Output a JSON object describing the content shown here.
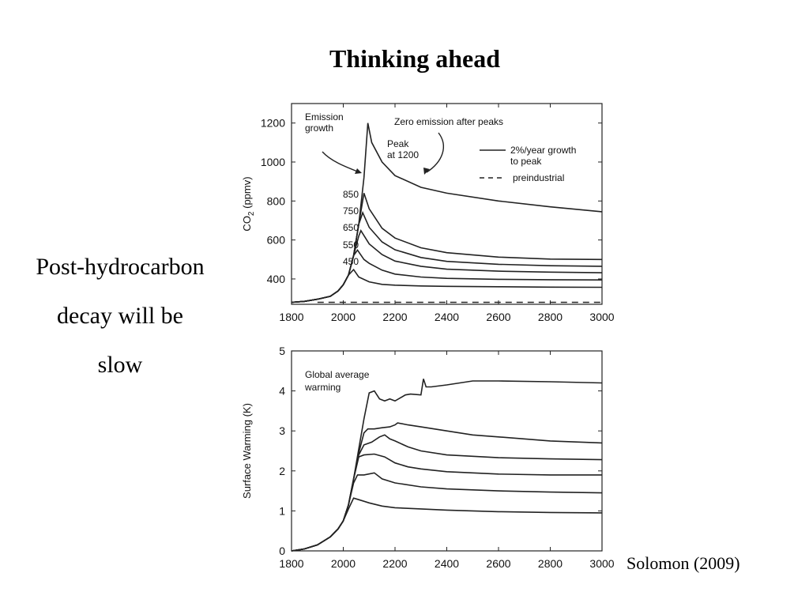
{
  "slide": {
    "title": "Thinking ahead",
    "side_text": [
      "Post-hydrocarbon",
      "decay will be",
      "slow"
    ],
    "citation": "Solomon (2009)"
  },
  "chart_data": [
    {
      "type": "line",
      "title": "",
      "xlabel": "",
      "ylabel": "CO2 (ppmv)",
      "xlim": [
        1800,
        3000
      ],
      "ylim": [
        270,
        1300
      ],
      "xticks": [
        1800,
        2000,
        2200,
        2400,
        2600,
        2800,
        3000
      ],
      "yticks": [
        400,
        600,
        800,
        1000,
        1200
      ],
      "grid": false,
      "legend_position": "top-right",
      "legend": [
        {
          "label": "2%/year growth\nto peak",
          "style": "solid"
        },
        {
          "label": "preindustrial",
          "style": "dashed"
        }
      ],
      "annotations": {
        "emission_growth": "Emission\ngrowth",
        "zero_emission": "Zero emission after peaks",
        "peak": "Peak\nat 1200",
        "peak_labels": [
          "850",
          "750",
          "650",
          "550",
          "450"
        ]
      },
      "series": [
        {
          "peak": 1200,
          "style": "solid",
          "x": [
            1800,
            1850,
            1900,
            1950,
            1980,
            2000,
            2020,
            2040,
            2060,
            2080,
            2095,
            2110,
            2150,
            2200,
            2300,
            2400,
            2600,
            2800,
            3000
          ],
          "y": [
            280,
            285,
            296,
            311,
            338,
            370,
            420,
            520,
            680,
            920,
            1200,
            1100,
            1000,
            930,
            870,
            840,
            800,
            770,
            745
          ]
        },
        {
          "peak": 850,
          "style": "solid",
          "x": [
            1800,
            1850,
            1900,
            1950,
            1980,
            2000,
            2020,
            2040,
            2060,
            2080,
            2100,
            2150,
            2200,
            2300,
            2400,
            2600,
            2800,
            3000
          ],
          "y": [
            280,
            285,
            296,
            311,
            338,
            370,
            420,
            520,
            680,
            840,
            760,
            660,
            610,
            560,
            535,
            512,
            502,
            500
          ]
        },
        {
          "peak": 750,
          "style": "solid",
          "x": [
            1800,
            1850,
            1900,
            1950,
            1980,
            2000,
            2020,
            2040,
            2060,
            2075,
            2100,
            2150,
            2200,
            2300,
            2400,
            2600,
            2800,
            3000
          ],
          "y": [
            280,
            285,
            296,
            311,
            338,
            370,
            420,
            520,
            680,
            740,
            665,
            590,
            550,
            510,
            490,
            475,
            468,
            465
          ]
        },
        {
          "peak": 650,
          "style": "solid",
          "x": [
            1800,
            1850,
            1900,
            1950,
            1980,
            2000,
            2020,
            2040,
            2060,
            2068,
            2100,
            2150,
            2200,
            2300,
            2400,
            2600,
            2800,
            3000
          ],
          "y": [
            280,
            285,
            296,
            311,
            338,
            370,
            420,
            520,
            620,
            648,
            580,
            525,
            492,
            465,
            450,
            440,
            435,
            432
          ]
        },
        {
          "peak": 550,
          "style": "solid",
          "x": [
            1800,
            1850,
            1900,
            1950,
            1980,
            2000,
            2020,
            2040,
            2055,
            2080,
            2100,
            2150,
            2200,
            2300,
            2400,
            2600,
            2800,
            3000
          ],
          "y": [
            280,
            285,
            296,
            311,
            338,
            370,
            420,
            520,
            548,
            500,
            480,
            445,
            425,
            410,
            403,
            398,
            396,
            395
          ]
        },
        {
          "peak": 450,
          "style": "solid",
          "x": [
            1800,
            1850,
            1900,
            1950,
            1980,
            2000,
            2020,
            2040,
            2060,
            2100,
            2150,
            2200,
            2300,
            2400,
            2600,
            2800,
            3000
          ],
          "y": [
            280,
            285,
            296,
            311,
            338,
            370,
            420,
            448,
            410,
            385,
            372,
            368,
            364,
            362,
            360,
            358,
            357
          ]
        },
        {
          "name": "preindustrial",
          "style": "dashed",
          "x": [
            1900,
            3000
          ],
          "y": [
            280,
            280
          ]
        }
      ]
    },
    {
      "type": "line",
      "title": "",
      "xlabel": "",
      "ylabel": "Surface Warming (K)",
      "xlim": [
        1800,
        3000
      ],
      "ylim": [
        0,
        5
      ],
      "xticks": [
        1800,
        2000,
        2200,
        2400,
        2600,
        2800,
        3000
      ],
      "yticks": [
        0,
        1,
        2,
        3,
        4,
        5
      ],
      "grid": false,
      "annotations": {
        "global_average": "Global average\nwarming"
      },
      "series": [
        {
          "peak": 1200,
          "style": "solid",
          "x": [
            1800,
            1850,
            1900,
            1950,
            1980,
            2000,
            2020,
            2040,
            2060,
            2080,
            2100,
            2120,
            2140,
            2160,
            2180,
            2200,
            2240,
            2260,
            2300,
            2310,
            2320,
            2340,
            2400,
            2500,
            2600,
            2800,
            3000
          ],
          "y": [
            0,
            0.05,
            0.15,
            0.35,
            0.55,
            0.75,
            1.15,
            1.8,
            2.55,
            3.3,
            3.95,
            4.0,
            3.8,
            3.75,
            3.8,
            3.75,
            3.9,
            3.92,
            3.9,
            4.3,
            4.1,
            4.1,
            4.15,
            4.25,
            4.25,
            4.23,
            4.2
          ]
        },
        {
          "peak": 850,
          "style": "solid",
          "x": [
            1800,
            1850,
            1900,
            1950,
            1980,
            2000,
            2020,
            2040,
            2060,
            2080,
            2095,
            2120,
            2150,
            2180,
            2200,
            2210,
            2250,
            2300,
            2400,
            2500,
            2600,
            2800,
            3000
          ],
          "y": [
            0,
            0.05,
            0.15,
            0.35,
            0.55,
            0.75,
            1.15,
            1.8,
            2.45,
            2.95,
            3.05,
            3.05,
            3.08,
            3.1,
            3.15,
            3.2,
            3.15,
            3.1,
            3.0,
            2.9,
            2.85,
            2.75,
            2.7
          ]
        },
        {
          "peak": 750,
          "style": "solid",
          "x": [
            1800,
            1850,
            1900,
            1950,
            1980,
            2000,
            2020,
            2040,
            2060,
            2080,
            2110,
            2140,
            2160,
            2180,
            2200,
            2250,
            2300,
            2400,
            2600,
            2800,
            3000
          ],
          "y": [
            0,
            0.05,
            0.15,
            0.35,
            0.55,
            0.75,
            1.15,
            1.8,
            2.4,
            2.65,
            2.72,
            2.85,
            2.9,
            2.8,
            2.75,
            2.6,
            2.5,
            2.4,
            2.33,
            2.3,
            2.28
          ]
        },
        {
          "peak": 650,
          "style": "solid",
          "x": [
            1800,
            1850,
            1900,
            1950,
            1980,
            2000,
            2020,
            2040,
            2060,
            2080,
            2120,
            2160,
            2200,
            2250,
            2300,
            2400,
            2600,
            2800,
            3000
          ],
          "y": [
            0,
            0.05,
            0.15,
            0.35,
            0.55,
            0.75,
            1.15,
            1.8,
            2.35,
            2.4,
            2.42,
            2.35,
            2.2,
            2.1,
            2.05,
            1.98,
            1.92,
            1.9,
            1.9
          ]
        },
        {
          "peak": 550,
          "style": "solid",
          "x": [
            1800,
            1850,
            1900,
            1950,
            1980,
            2000,
            2020,
            2040,
            2055,
            2080,
            2120,
            2150,
            2200,
            2300,
            2400,
            2600,
            2800,
            3000
          ],
          "y": [
            0,
            0.05,
            0.15,
            0.35,
            0.55,
            0.75,
            1.15,
            1.7,
            1.9,
            1.9,
            1.95,
            1.8,
            1.7,
            1.6,
            1.55,
            1.5,
            1.47,
            1.45
          ]
        },
        {
          "peak": 450,
          "style": "solid",
          "x": [
            1800,
            1850,
            1900,
            1950,
            1980,
            2000,
            2020,
            2040,
            2060,
            2100,
            2150,
            2200,
            2300,
            2400,
            2600,
            2800,
            3000
          ],
          "y": [
            0,
            0.05,
            0.15,
            0.35,
            0.55,
            0.75,
            1.05,
            1.32,
            1.28,
            1.2,
            1.12,
            1.08,
            1.05,
            1.02,
            0.98,
            0.96,
            0.95
          ]
        }
      ]
    }
  ]
}
